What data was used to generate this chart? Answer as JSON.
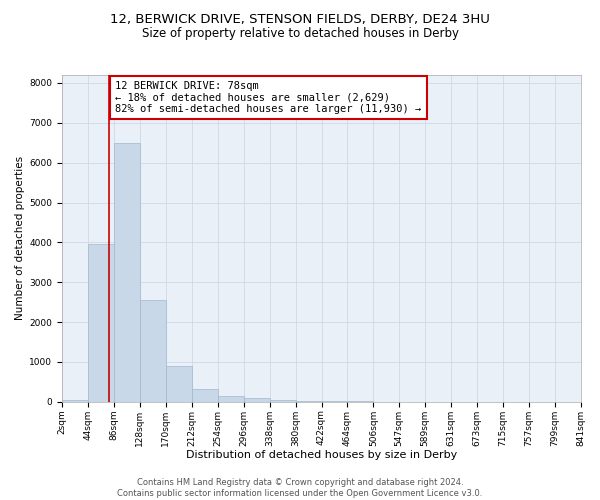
{
  "title_line1": "12, BERWICK DRIVE, STENSON FIELDS, DERBY, DE24 3HU",
  "title_line2": "Size of property relative to detached houses in Derby",
  "xlabel": "Distribution of detached houses by size in Derby",
  "ylabel": "Number of detached properties",
  "bin_edges": [
    2,
    44,
    86,
    128,
    170,
    212,
    254,
    296,
    338,
    380,
    422,
    464,
    506,
    547,
    589,
    631,
    673,
    715,
    757,
    799,
    841
  ],
  "bar_heights": [
    50,
    3950,
    6500,
    2550,
    900,
    330,
    150,
    100,
    50,
    30,
    15,
    10,
    5,
    3,
    2,
    1,
    1,
    0,
    0,
    0
  ],
  "bar_color": "#c8d8e8",
  "bar_edgecolor": "#a0b8cc",
  "bar_linewidth": 0.5,
  "vline_x": 78,
  "vline_color": "#cc0000",
  "vline_linewidth": 1.2,
  "annotation_line1": "12 BERWICK DRIVE: 78sqm",
  "annotation_line2": "← 18% of detached houses are smaller (2,629)",
  "annotation_line3": "82% of semi-detached houses are larger (11,930) →",
  "annotation_box_edgecolor": "#cc0000",
  "annotation_box_facecolor": "#ffffff",
  "ylim": [
    0,
    8200
  ],
  "xlim": [
    2,
    841
  ],
  "yticks": [
    0,
    1000,
    2000,
    3000,
    4000,
    5000,
    6000,
    7000,
    8000
  ],
  "xtick_labels": [
    "2sqm",
    "44sqm",
    "86sqm",
    "128sqm",
    "170sqm",
    "212sqm",
    "254sqm",
    "296sqm",
    "338sqm",
    "380sqm",
    "422sqm",
    "464sqm",
    "506sqm",
    "547sqm",
    "589sqm",
    "631sqm",
    "673sqm",
    "715sqm",
    "757sqm",
    "799sqm",
    "841sqm"
  ],
  "grid_color": "#d0d8e8",
  "background_color": "#eaf0f8",
  "footer_text": "Contains HM Land Registry data © Crown copyright and database right 2024.\nContains public sector information licensed under the Open Government Licence v3.0.",
  "title_fontsize": 9.5,
  "subtitle_fontsize": 8.5,
  "tick_fontsize": 6.5,
  "xlabel_fontsize": 8,
  "ylabel_fontsize": 7.5,
  "annotation_fontsize": 7.5,
  "footer_fontsize": 6
}
